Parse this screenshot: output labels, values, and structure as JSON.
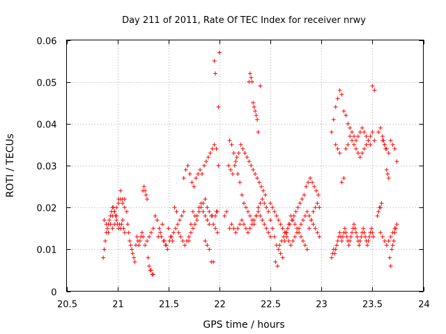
{
  "chart_data": {
    "type": "scatter",
    "title": "Day 211 of 2011, Rate Of TEC Index for receiver nrwy",
    "xlabel": "GPS time / hours",
    "ylabel": "ROTI / TECUs",
    "xlim": [
      20.5,
      24
    ],
    "ylim": [
      0,
      0.06
    ],
    "xticks": [
      "20.5",
      "21",
      "21.5",
      "22",
      "22.5",
      "23",
      "23.5",
      "24"
    ],
    "yticks": [
      "0",
      "0.01",
      "0.02",
      "0.03",
      "0.04",
      "0.05",
      "0.06"
    ],
    "grid": true,
    "marker": "+",
    "color": "#ff0000",
    "series": [
      {
        "name": "ROTI",
        "x": [
          20.86,
          20.87,
          20.88,
          20.89,
          20.9,
          20.91,
          20.92,
          20.93,
          20.94,
          20.95,
          20.96,
          20.97,
          20.98,
          20.99,
          21.0,
          21.01,
          21.02,
          21.03,
          21.04,
          21.05,
          21.06,
          21.07,
          20.87,
          20.89,
          20.91,
          20.93,
          20.95,
          20.97,
          20.99,
          21.01,
          21.03,
          21.05,
          21.07,
          20.95,
          20.97,
          20.99,
          21.01,
          21.03,
          21.05,
          21.07,
          21.09,
          21.1,
          21.11,
          21.12,
          21.13,
          21.14,
          21.15,
          21.16,
          21.17,
          21.18,
          21.19,
          21.2,
          21.21,
          21.22,
          21.23,
          21.24,
          21.25,
          21.26,
          21.27,
          21.28,
          21.29,
          21.3,
          21.31,
          21.32,
          21.33,
          21.34,
          21.35,
          21.25,
          21.27,
          21.29,
          21.31,
          21.33,
          21.35,
          21.37,
          21.39,
          21.41,
          21.43,
          21.45,
          21.47,
          21.49,
          21.51,
          21.53,
          21.55,
          21.57,
          21.59,
          21.61,
          21.63,
          21.65,
          21.4,
          21.42,
          21.44,
          21.46,
          21.48,
          21.5,
          21.52,
          21.54,
          21.56,
          21.58,
          21.6,
          21.62,
          21.64,
          21.66,
          21.68,
          21.7,
          21.72,
          21.74,
          21.76,
          21.78,
          21.8,
          21.82,
          21.84,
          21.86,
          21.88,
          21.9,
          21.65,
          21.67,
          21.69,
          21.71,
          21.73,
          21.75,
          21.77,
          21.79,
          21.81,
          21.83,
          21.85,
          21.87,
          21.89,
          21.91,
          21.93,
          21.95,
          21.97,
          21.99,
          21.7,
          21.72,
          21.74,
          21.76,
          21.78,
          21.8,
          21.82,
          21.84,
          21.86,
          21.88,
          21.9,
          21.92,
          21.94,
          21.96,
          21.98,
          21.86,
          21.88,
          21.9,
          21.92,
          21.94,
          21.96,
          21.97,
          21.98,
          21.99,
          22.0,
          21.93,
          21.95,
          21.96,
          22.05,
          22.07,
          22.09,
          22.11,
          22.13,
          22.15,
          22.17,
          22.19,
          22.21,
          22.23,
          22.25,
          22.27,
          22.29,
          22.31,
          22.33,
          22.35,
          22.37,
          22.39,
          22.41,
          22.43,
          22.45,
          22.1,
          22.12,
          22.14,
          22.16,
          22.18,
          22.2,
          22.22,
          22.24,
          22.26,
          22.28,
          22.3,
          22.32,
          22.34,
          22.36,
          22.38,
          22.4,
          22.42,
          22.44,
          22.46,
          22.48,
          22.1,
          22.12,
          22.14,
          22.16,
          22.18,
          22.2,
          22.22,
          22.24,
          22.26,
          22.28,
          22.3,
          22.32,
          22.34,
          22.36,
          22.38,
          22.4,
          22.42,
          22.44,
          22.46,
          22.48,
          22.5,
          22.29,
          22.3,
          22.31,
          22.32,
          22.33,
          22.34,
          22.35,
          22.36,
          22.37,
          22.38,
          22.4,
          22.5,
          22.52,
          22.54,
          22.56,
          22.58,
          22.6,
          22.62,
          22.64,
          22.66,
          22.68,
          22.7,
          22.72,
          22.74,
          22.76,
          22.78,
          22.8,
          22.82,
          22.84,
          22.86,
          22.88,
          22.9,
          22.92,
          22.94,
          22.96,
          22.98,
          22.5,
          22.52,
          22.54,
          22.56,
          22.58,
          22.6,
          22.62,
          22.64,
          22.66,
          22.68,
          22.7,
          22.72,
          22.74,
          22.76,
          22.78,
          22.8,
          22.82,
          22.84,
          22.86,
          22.88,
          22.9,
          22.92,
          22.94,
          22.96,
          22.98,
          22.55,
          22.57,
          22.59,
          22.61,
          22.63,
          22.65,
          22.67,
          22.69,
          22.71,
          22.73,
          22.75,
          22.77,
          22.79,
          22.81,
          22.83,
          22.85,
          22.87,
          22.89,
          22.91,
          22.93,
          22.95,
          22.97,
          23.1,
          23.11,
          23.12,
          23.13,
          23.14,
          23.15,
          23.16,
          23.17,
          23.18,
          23.19,
          23.2,
          23.21,
          23.22,
          23.23,
          23.24,
          23.25,
          23.26,
          23.27,
          23.28,
          23.29,
          23.3,
          23.31,
          23.32,
          23.33,
          23.34,
          23.35,
          23.36,
          23.37,
          23.38,
          23.39,
          23.4,
          23.41,
          23.42,
          23.43,
          23.44,
          23.45,
          23.46,
          23.47,
          23.48,
          23.49,
          23.5,
          23.51,
          23.1,
          23.12,
          23.14,
          23.16,
          23.18,
          23.2,
          23.22,
          23.24,
          23.26,
          23.28,
          23.3,
          23.32,
          23.34,
          23.36,
          23.38,
          23.4,
          23.42,
          23.44,
          23.46,
          23.48,
          23.5,
          23.52,
          23.14,
          23.16,
          23.18,
          23.2,
          23.22,
          23.24,
          23.26,
          23.28,
          23.3,
          23.32,
          23.34,
          23.36,
          23.38,
          23.4,
          23.42,
          23.44,
          23.46,
          23.48,
          23.5,
          23.52,
          23.55,
          23.56,
          23.57,
          23.58,
          23.59,
          23.6,
          23.61,
          23.62,
          23.63,
          23.64,
          23.65,
          23.66,
          23.67,
          23.68,
          23.69,
          23.7,
          23.71,
          23.72,
          23.73,
          23.56,
          23.58,
          23.6,
          23.62,
          23.64,
          23.66,
          23.68,
          23.7,
          23.72,
          23.74,
          23.58,
          23.6,
          23.62,
          23.64,
          23.66,
          23.68,
          23.7,
          23.72,
          23.74
        ],
        "y": [
          0.008,
          0.01,
          0.012,
          0.014,
          0.015,
          0.016,
          0.017,
          0.018,
          0.019,
          0.02,
          0.02,
          0.019,
          0.018,
          0.017,
          0.016,
          0.015,
          0.016,
          0.015,
          0.016,
          0.017,
          0.015,
          0.014,
          0.017,
          0.016,
          0.014,
          0.016,
          0.018,
          0.019,
          0.02,
          0.022,
          0.022,
          0.021,
          0.02,
          0.015,
          0.016,
          0.018,
          0.021,
          0.024,
          0.022,
          0.022,
          0.019,
          0.016,
          0.014,
          0.012,
          0.011,
          0.01,
          0.009,
          0.008,
          0.007,
          0.011,
          0.013,
          0.012,
          0.011,
          0.012,
          0.013,
          0.014,
          0.024,
          0.025,
          0.024,
          0.023,
          0.022,
          0.008,
          0.006,
          0.005,
          0.005,
          0.004,
          0.004,
          0.013,
          0.011,
          0.012,
          0.013,
          0.014,
          0.015,
          0.018,
          0.017,
          0.015,
          0.013,
          0.012,
          0.011,
          0.01,
          0.012,
          0.013,
          0.014,
          0.015,
          0.016,
          0.017,
          0.018,
          0.019,
          0.013,
          0.014,
          0.016,
          0.012,
          0.011,
          0.015,
          0.013,
          0.012,
          0.02,
          0.019,
          0.014,
          0.013,
          0.012,
          0.011,
          0.012,
          0.013,
          0.016,
          0.019,
          0.018,
          0.017,
          0.02,
          0.021,
          0.019,
          0.018,
          0.017,
          0.016,
          0.027,
          0.029,
          0.03,
          0.028,
          0.026,
          0.025,
          0.027,
          0.028,
          0.029,
          0.028,
          0.03,
          0.031,
          0.032,
          0.033,
          0.034,
          0.035,
          0.034,
          0.03,
          0.012,
          0.014,
          0.015,
          0.016,
          0.018,
          0.019,
          0.02,
          0.021,
          0.022,
          0.02,
          0.019,
          0.018,
          0.016,
          0.015,
          0.014,
          0.012,
          0.011,
          0.01,
          0.007,
          0.007,
          0.018,
          0.019,
          0.019,
          0.044,
          0.057,
          0.018,
          0.055,
          0.052,
          0.018,
          0.019,
          0.03,
          0.029,
          0.028,
          0.03,
          0.032,
          0.033,
          0.035,
          0.034,
          0.033,
          0.032,
          0.031,
          0.03,
          0.029,
          0.028,
          0.027,
          0.026,
          0.025,
          0.024,
          0.023,
          0.036,
          0.035,
          0.033,
          0.031,
          0.028,
          0.026,
          0.023,
          0.021,
          0.02,
          0.019,
          0.018,
          0.017,
          0.016,
          0.018,
          0.02,
          0.021,
          0.022,
          0.021,
          0.02,
          0.019,
          0.015,
          0.016,
          0.015,
          0.014,
          0.015,
          0.016,
          0.017,
          0.016,
          0.015,
          0.014,
          0.015,
          0.016,
          0.017,
          0.018,
          0.019,
          0.018,
          0.017,
          0.016,
          0.015,
          0.014,
          0.013,
          0.05,
          0.052,
          0.051,
          0.05,
          0.045,
          0.044,
          0.043,
          0.042,
          0.041,
          0.038,
          0.049,
          0.017,
          0.015,
          0.013,
          0.011,
          0.01,
          0.009,
          0.008,
          0.012,
          0.014,
          0.016,
          0.018,
          0.017,
          0.016,
          0.015,
          0.014,
          0.013,
          0.012,
          0.011,
          0.01,
          0.015,
          0.017,
          0.019,
          0.02,
          0.021,
          0.02,
          0.021,
          0.02,
          0.019,
          0.018,
          0.017,
          0.016,
          0.015,
          0.014,
          0.013,
          0.012,
          0.011,
          0.012,
          0.013,
          0.014,
          0.015,
          0.016,
          0.017,
          0.018,
          0.019,
          0.018,
          0.017,
          0.016,
          0.015,
          0.014,
          0.013,
          0.007,
          0.006,
          0.011,
          0.012,
          0.013,
          0.014,
          0.015,
          0.016,
          0.017,
          0.018,
          0.019,
          0.02,
          0.021,
          0.022,
          0.023,
          0.025,
          0.026,
          0.027,
          0.026,
          0.025,
          0.024,
          0.023,
          0.008,
          0.009,
          0.01,
          0.009,
          0.01,
          0.011,
          0.012,
          0.013,
          0.014,
          0.013,
          0.012,
          0.013,
          0.014,
          0.015,
          0.014,
          0.013,
          0.012,
          0.011,
          0.012,
          0.013,
          0.014,
          0.015,
          0.016,
          0.015,
          0.014,
          0.013,
          0.012,
          0.011,
          0.012,
          0.013,
          0.014,
          0.015,
          0.014,
          0.013,
          0.012,
          0.011,
          0.012,
          0.013,
          0.014,
          0.015,
          0.014,
          0.013,
          0.038,
          0.041,
          0.044,
          0.046,
          0.048,
          0.047,
          0.043,
          0.042,
          0.04,
          0.039,
          0.038,
          0.037,
          0.036,
          0.037,
          0.038,
          0.039,
          0.038,
          0.037,
          0.036,
          0.035,
          0.049,
          0.048,
          0.035,
          0.034,
          0.033,
          0.026,
          0.027,
          0.034,
          0.035,
          0.037,
          0.036,
          0.035,
          0.034,
          0.033,
          0.032,
          0.033,
          0.034,
          0.035,
          0.036,
          0.037,
          0.038,
          0.036,
          0.018,
          0.019,
          0.02,
          0.02,
          0.021,
          0.037,
          0.036,
          0.035,
          0.034,
          0.029,
          0.028,
          0.027,
          0.008,
          0.006,
          0.01,
          0.011,
          0.012,
          0.014,
          0.015,
          0.038,
          0.039,
          0.036,
          0.035,
          0.034,
          0.033,
          0.036,
          0.035,
          0.034,
          0.031,
          0.014,
          0.013,
          0.012,
          0.011,
          0.012,
          0.013,
          0.014,
          0.015,
          0.016
        ]
      }
    ]
  }
}
